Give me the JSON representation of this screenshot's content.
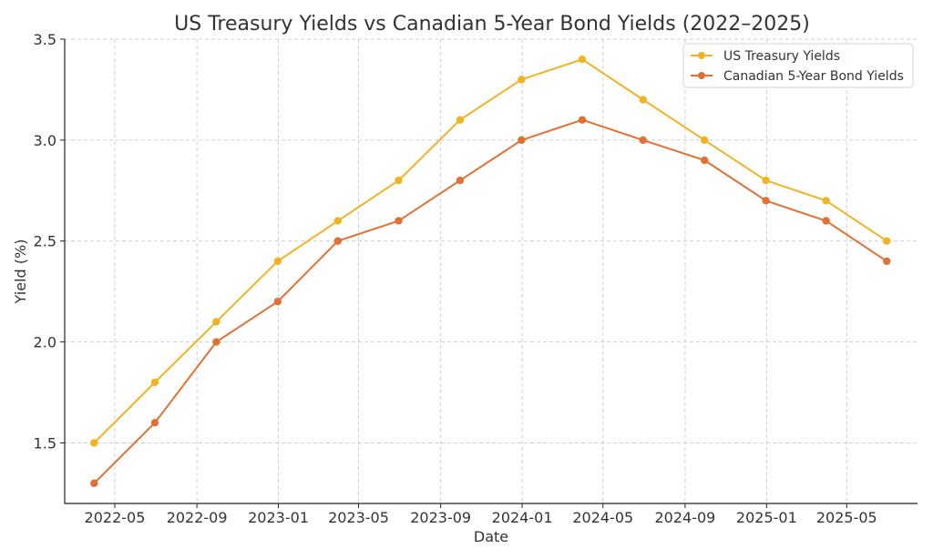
{
  "chart_data": {
    "type": "line",
    "title": "US Treasury Yields vs Canadian 5-Year Bond Yields (2022–2025)",
    "xlabel": "Date",
    "ylabel": "Yield (%)",
    "x": [
      "2022-03-31",
      "2022-06-30",
      "2022-09-30",
      "2022-12-31",
      "2023-03-31",
      "2023-06-30",
      "2023-09-30",
      "2023-12-31",
      "2024-03-31",
      "2024-06-30",
      "2024-09-30",
      "2024-12-31",
      "2025-03-31",
      "2025-06-30"
    ],
    "x_ticks": [
      "2022-05",
      "2022-09",
      "2023-01",
      "2023-05",
      "2023-09",
      "2024-01",
      "2024-05",
      "2024-09",
      "2025-01",
      "2025-05"
    ],
    "xlim": [
      "2022-02-15",
      "2025-08-15"
    ],
    "y_ticks": [
      "1.5",
      "2.0",
      "2.5",
      "3.0",
      "3.5"
    ],
    "ylim": [
      1.2,
      3.5
    ],
    "grid": true,
    "legend_position": "top-right",
    "series": [
      {
        "name": "US Treasury Yields",
        "color": "#f0b323",
        "values": [
          1.5,
          1.8,
          2.1,
          2.4,
          2.6,
          2.8,
          3.1,
          3.3,
          3.4,
          3.2,
          3.0,
          2.8,
          2.7,
          2.5
        ]
      },
      {
        "name": "Canadian 5-Year Bond Yields",
        "color": "#e07034",
        "values": [
          1.3,
          1.6,
          2.0,
          2.2,
          2.5,
          2.6,
          2.8,
          3.0,
          3.1,
          3.0,
          2.9,
          2.7,
          2.6,
          2.4
        ]
      }
    ]
  }
}
